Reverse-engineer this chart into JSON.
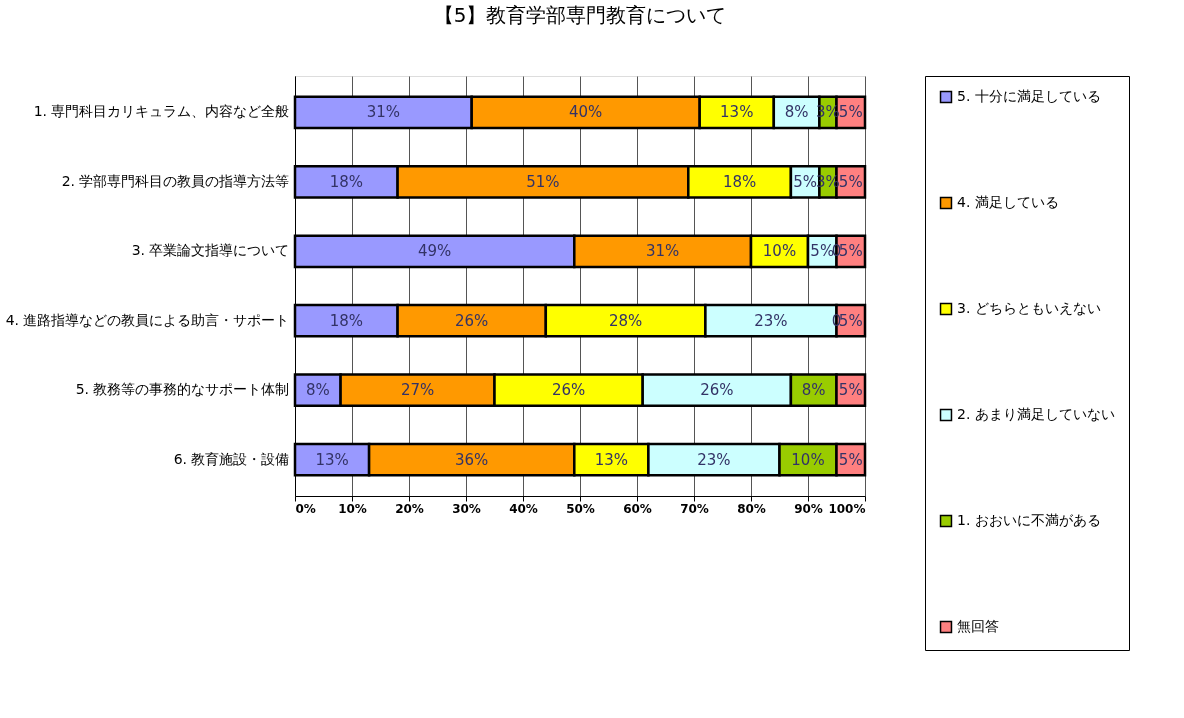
{
  "chart_data": {
    "type": "bar",
    "orientation": "horizontal",
    "stacked": true,
    "title": "【5】教育学部専門教育について",
    "categories": [
      "1. 専門科目カリキュラム、内容など全般",
      "2. 学部専門科目の教員の指導方法等",
      "3. 卒業論文指導について",
      "4. 進路指導などの教員による助言・サポート",
      "5. 教務等の事務的なサポート体制",
      "6. 教育施設・設備"
    ],
    "series": [
      {
        "name": "5. 十分に満足している",
        "color": "#9999ff",
        "values": [
          31,
          18,
          49,
          18,
          8,
          13
        ],
        "value_labels": [
          "31%",
          "18%",
          "49%",
          "18%",
          "8%",
          "13%"
        ]
      },
      {
        "name": "4. 満足している",
        "color": "#ff9900",
        "values": [
          40,
          51,
          31,
          26,
          27,
          36
        ],
        "value_labels": [
          "40%",
          "51%",
          "31%",
          "26%",
          "27%",
          "36%"
        ]
      },
      {
        "name": "3. どちらともいえない",
        "color": "#ffff00",
        "values": [
          13,
          18,
          10,
          28,
          26,
          13
        ],
        "value_labels": [
          "13%",
          "18%",
          "10%",
          "28%",
          "26%",
          "13%"
        ]
      },
      {
        "name": "2. あまり満足していない",
        "color": "#ccffff",
        "values": [
          8,
          5,
          5,
          23,
          26,
          23
        ],
        "value_labels": [
          "8%",
          "5%",
          "5%",
          "23%",
          "26%",
          "23%"
        ]
      },
      {
        "name": "1. おおいに不満がある",
        "color": "#99cc00",
        "values": [
          3,
          3,
          0,
          0,
          8,
          10
        ],
        "value_labels": [
          "3%",
          "3%",
          "0",
          "0",
          "8%",
          "10%"
        ]
      },
      {
        "name": "無回答",
        "color": "#ff8080",
        "values": [
          5,
          5,
          5,
          5,
          5,
          5
        ],
        "value_labels": [
          "5%",
          "5%",
          "5%",
          "5%",
          "5%",
          "5%"
        ]
      }
    ],
    "xlim": [
      0,
      100
    ],
    "xticks": [
      {
        "value": 0,
        "label": "0%"
      },
      {
        "value": 10,
        "label": "10%"
      },
      {
        "value": 20,
        "label": "20%"
      },
      {
        "value": 30,
        "label": "30%"
      },
      {
        "value": 40,
        "label": "40%"
      },
      {
        "value": 50,
        "label": "50%"
      },
      {
        "value": 60,
        "label": "60%"
      },
      {
        "value": 70,
        "label": "70%"
      },
      {
        "value": 80,
        "label": "80%"
      },
      {
        "value": 90,
        "label": "90%"
      },
      {
        "value": 100,
        "label": "100%"
      }
    ],
    "grid": true,
    "legend": "right"
  }
}
